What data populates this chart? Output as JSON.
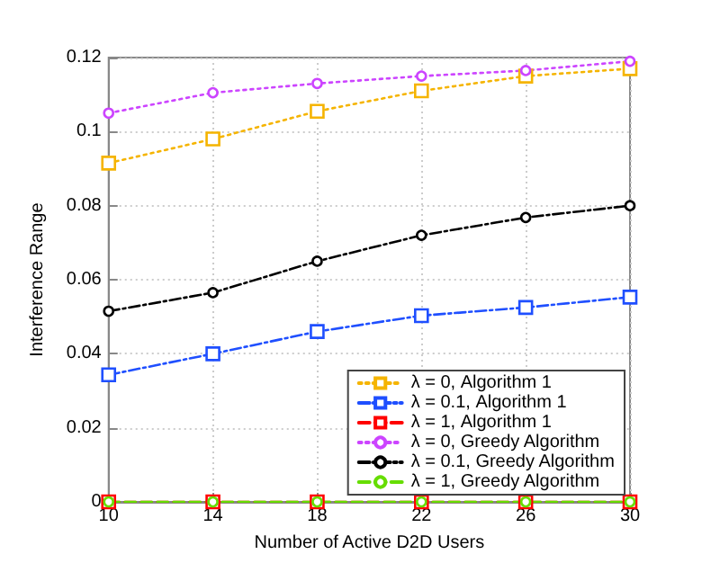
{
  "chart_data": {
    "type": "line",
    "xlabel": "Number of Active D2D Users",
    "ylabel": "Interference Range",
    "x": [
      10,
      14,
      18,
      22,
      26,
      30
    ],
    "xlim": [
      10,
      30
    ],
    "xticks": [
      10,
      14,
      18,
      22,
      26,
      30
    ],
    "ylim": [
      0,
      0.12
    ],
    "yticks": [
      0,
      0.02,
      0.04,
      0.06,
      0.08,
      0.1,
      0.12
    ],
    "grid": true,
    "legend": "bottom right",
    "series": [
      {
        "name": "λ = 0, Algorithm 1",
        "color": "#f5b400",
        "marker": "square",
        "line_style": "dotted",
        "values": [
          0.0915,
          0.098,
          0.1055,
          0.111,
          0.115,
          0.117
        ]
      },
      {
        "name": "λ = 0.1, Algorithm 1",
        "color": "#1f4fff",
        "marker": "square",
        "line_style": "dashdot",
        "values": [
          0.0343,
          0.04,
          0.046,
          0.0503,
          0.0525,
          0.0553
        ]
      },
      {
        "name": "λ = 1, Algorithm 1",
        "color": "#ff0000",
        "marker": "square",
        "line_style": "dashed",
        "values": [
          0,
          0,
          0,
          0,
          0,
          0
        ]
      },
      {
        "name": "λ = 0, Greedy Algorithm",
        "color": "#cc44ff",
        "marker": "circle",
        "line_style": "dotted",
        "values": [
          0.105,
          0.1105,
          0.113,
          0.115,
          0.1165,
          0.119
        ]
      },
      {
        "name": "λ = 0.1, Greedy Algorithm",
        "color": "#000000",
        "marker": "circle",
        "line_style": "dashdot",
        "values": [
          0.0515,
          0.0565,
          0.065,
          0.072,
          0.0768,
          0.08
        ]
      },
      {
        "name": "λ = 1, Greedy Algorithm",
        "color": "#66dd00",
        "marker": "circle",
        "line_style": "dashed",
        "values": [
          0,
          0,
          0,
          0,
          0,
          0
        ]
      }
    ]
  }
}
